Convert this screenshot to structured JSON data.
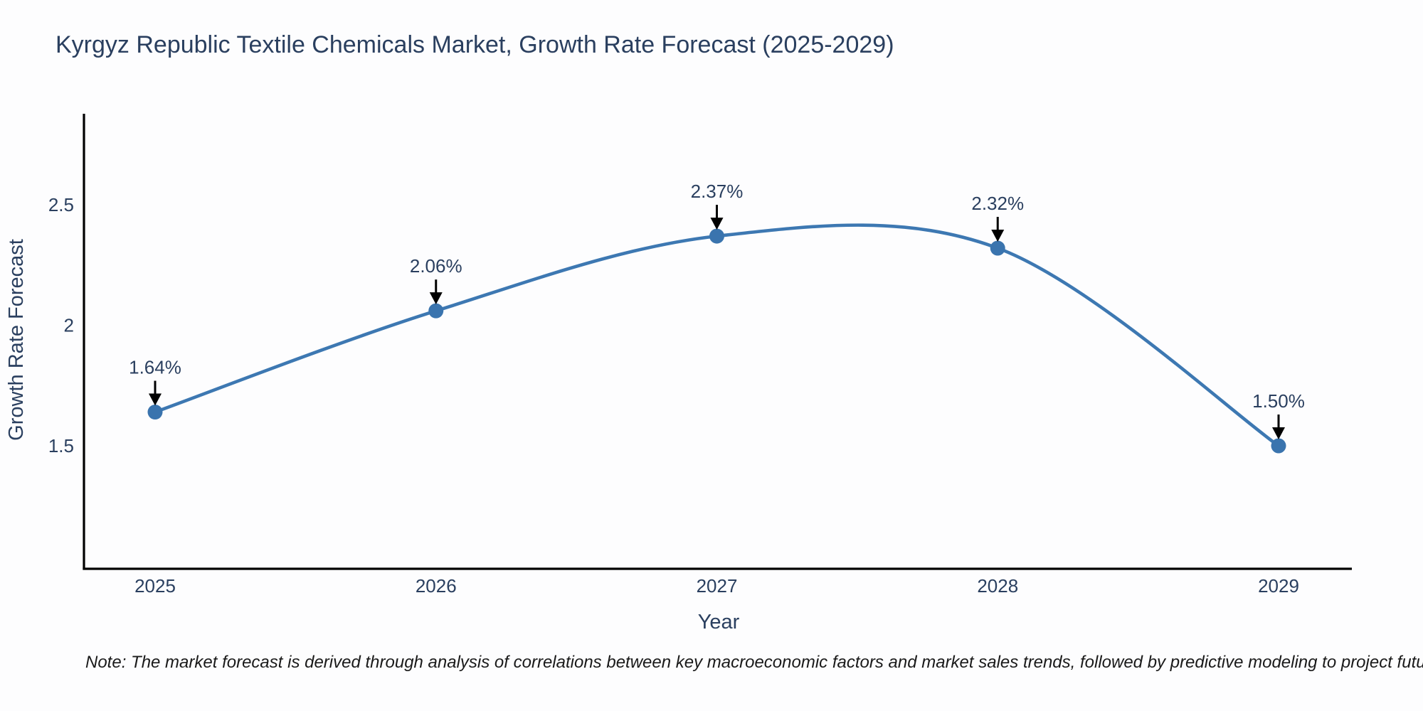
{
  "title": "Kyrgyz Republic Textile Chemicals Market, Growth Rate Forecast (2025-2029)",
  "note": "Note: The market forecast is derived through analysis of correlations between key macroeconomic factors and market sales trends, followed by predictive modeling to project future sales",
  "chart_data": {
    "type": "line",
    "line_shape": "spline",
    "title": "Kyrgyz Republic Textile Chemicals Market, Growth Rate Forecast (2025-2029)",
    "xlabel": "Year",
    "ylabel": "Growth Rate Forecast",
    "x": [
      2025,
      2026,
      2027,
      2028,
      2029
    ],
    "values": [
      1.64,
      2.06,
      2.37,
      2.32,
      1.5
    ],
    "point_labels": [
      "1.64%",
      "2.06%",
      "2.37%",
      "2.32%",
      "1.50%"
    ],
    "xtick_labels": [
      "2025",
      "2026",
      "2027",
      "2028",
      "2029"
    ],
    "yticks": [
      1.5,
      2,
      2.5
    ],
    "ytick_labels": [
      "1.5",
      "2",
      "2.5"
    ],
    "xlim": [
      2024.75,
      2029.26
    ],
    "ylim": [
      0.99,
      2.89
    ],
    "grid": false,
    "legend": "none",
    "line_color": "#3d78b2",
    "marker_color": "#3a74ae",
    "axis_color": "#000000",
    "text_color": "#2a3f5f",
    "annotation_arrow_color": "#000000"
  }
}
